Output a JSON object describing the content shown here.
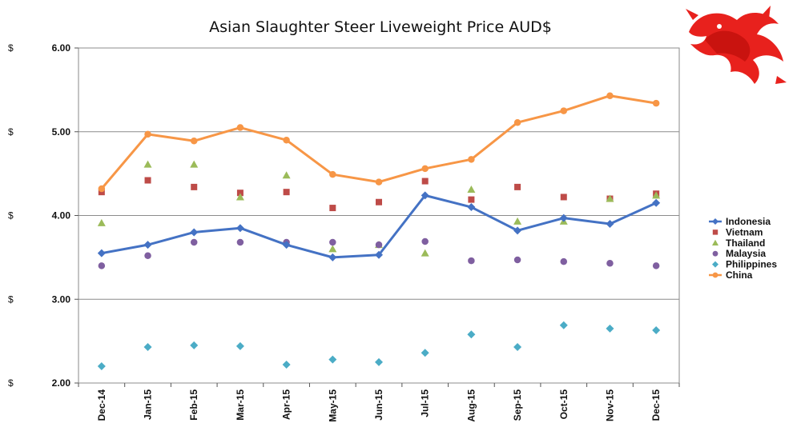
{
  "chart_data": {
    "type": "line",
    "title": "Asian Slaughter Steer Liveweight Price AUD$",
    "y_tick_prefix": "$",
    "ylim": [
      2.0,
      6.0
    ],
    "y_ticks": [
      "2.00",
      "3.00",
      "4.00",
      "5.00",
      "6.00"
    ],
    "grid": "horizontal",
    "legend_position": "right",
    "categories": [
      "Dec-14",
      "Jan-15",
      "Feb-15",
      "Mar-15",
      "Apr-15",
      "May-15",
      "Jun-15",
      "Jul-15",
      "Aug-15",
      "Sep-15",
      "Oct-15",
      "Nov-15",
      "Dec-15"
    ],
    "series": [
      {
        "name": "Indonesia",
        "color": "#4472C4",
        "marker": "diamond",
        "line": true,
        "values": [
          3.55,
          3.65,
          3.8,
          3.85,
          3.65,
          3.5,
          3.53,
          4.24,
          4.1,
          3.82,
          3.97,
          3.9,
          4.15
        ]
      },
      {
        "name": "Vietnam",
        "color": "#BE4B48",
        "marker": "square",
        "line": false,
        "values": [
          4.28,
          4.42,
          4.34,
          4.27,
          4.28,
          4.09,
          4.16,
          4.41,
          4.19,
          4.34,
          4.22,
          4.2,
          4.26
        ]
      },
      {
        "name": "Thailand",
        "color": "#9BBB59",
        "marker": "triangle",
        "line": false,
        "values": [
          3.91,
          4.61,
          4.61,
          4.22,
          4.48,
          3.6,
          3.65,
          3.55,
          4.31,
          3.93,
          3.93,
          4.2,
          4.24
        ]
      },
      {
        "name": "Malaysia",
        "color": "#7F5FA0",
        "marker": "circle",
        "line": false,
        "values": [
          3.4,
          3.52,
          3.68,
          3.68,
          3.68,
          3.68,
          3.65,
          3.69,
          3.46,
          3.47,
          3.45,
          3.43,
          3.4
        ]
      },
      {
        "name": "Philippines",
        "color": "#4BACC6",
        "marker": "diamond",
        "line": false,
        "values": [
          2.2,
          2.43,
          2.45,
          2.44,
          2.22,
          2.28,
          2.25,
          2.36,
          2.58,
          2.43,
          2.69,
          2.65,
          2.63
        ]
      },
      {
        "name": "China",
        "color": "#F79646",
        "marker": "circle",
        "line": true,
        "values": [
          4.32,
          4.97,
          4.89,
          5.05,
          4.9,
          4.49,
          4.4,
          4.56,
          4.67,
          5.11,
          5.25,
          5.43,
          5.34
        ]
      }
    ]
  },
  "logo": {
    "name": "red-dragon-logo",
    "color": "#E8211D"
  }
}
